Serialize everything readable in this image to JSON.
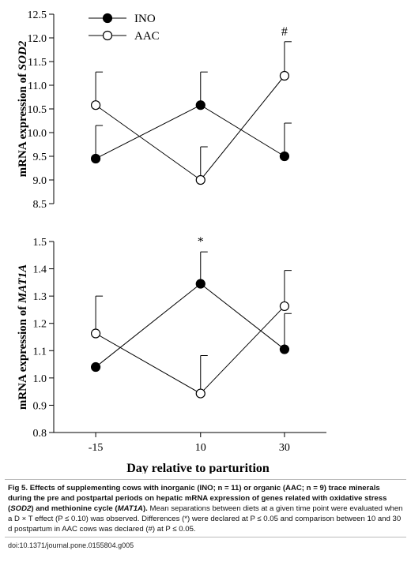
{
  "chart_data": [
    {
      "type": "line",
      "ylabel": "mRNA expression of SOD2",
      "ylabel_parts": [
        {
          "text": "mRNA expression of ",
          "italic": false
        },
        {
          "text": "SOD2",
          "italic": true
        }
      ],
      "xlabel": "",
      "x": [
        -15,
        10,
        30
      ],
      "ylim": [
        8.5,
        12.5
      ],
      "yticks": [
        "8.5",
        "9.0",
        "9.5",
        "10.0",
        "10.5",
        "11.0",
        "11.5",
        "12.0",
        "12.5"
      ],
      "x_tick_labels_shown": false,
      "legend": "top-left",
      "series": [
        {
          "name": "INO",
          "marker": "filled-circle",
          "values": [
            9.45,
            10.58,
            9.5
          ],
          "error_upper": [
            10.15,
            11.28,
            10.2
          ]
        },
        {
          "name": "AAC",
          "marker": "open-circle",
          "values": [
            10.58,
            9.0,
            11.2
          ],
          "error_upper": [
            11.28,
            9.7,
            11.92
          ]
        }
      ],
      "annotations": [
        {
          "text": "#",
          "x": 30,
          "y": 12.05
        }
      ]
    },
    {
      "type": "line",
      "ylabel": "mRNA expression of MAT1A",
      "ylabel_parts": [
        {
          "text": "mRNA expression of ",
          "italic": false
        },
        {
          "text": "MAT1A",
          "italic": true
        }
      ],
      "xlabel": "Day relative to parturition",
      "x": [
        -15,
        10,
        30
      ],
      "x_tick_labels": [
        "-15",
        "10",
        "30"
      ],
      "ylim": [
        0.8,
        1.5
      ],
      "yticks": [
        "0.8",
        "0.9",
        "1.0",
        "1.1",
        "1.2",
        "1.3",
        "1.4",
        "1.5"
      ],
      "series": [
        {
          "name": "INO",
          "marker": "filled-circle",
          "values": [
            1.04,
            1.345,
            1.105
          ],
          "error_upper": [
            1.04,
            1.462,
            1.236
          ]
        },
        {
          "name": "AAC",
          "marker": "open-circle",
          "values": [
            1.163,
            0.943,
            1.263
          ],
          "error_upper": [
            1.3,
            1.082,
            1.394
          ]
        }
      ],
      "annotations": [
        {
          "text": "*",
          "x": 10,
          "y": 1.485
        }
      ]
    }
  ],
  "caption": {
    "label": "Fig 5.",
    "title_parts": [
      {
        "text": " Effects of supplementing cows with inorganic (INO; n = 11) or organic (AAC; n = 9) trace minerals during the pre and postpartal periods on hepatic mRNA expression of genes related with oxidative stress (",
        "italic": false
      },
      {
        "text": "SOD2",
        "italic": true
      },
      {
        "text": ") and methionine cycle (",
        "italic": false
      },
      {
        "text": "MAT1A",
        "italic": true
      },
      {
        "text": ").",
        "italic": false
      }
    ],
    "body": " Mean separations between diets at a given time point were evaluated when a D × T effect (P ≤ 0.10) was observed. Differences (*) were declared at P ≤ 0.05 and comparison between 10 and 30 d postpartum in AAC cows was declared (#) at P ≤ 0.05."
  },
  "doi": "doi:10.1371/journal.pone.0155804.g005"
}
